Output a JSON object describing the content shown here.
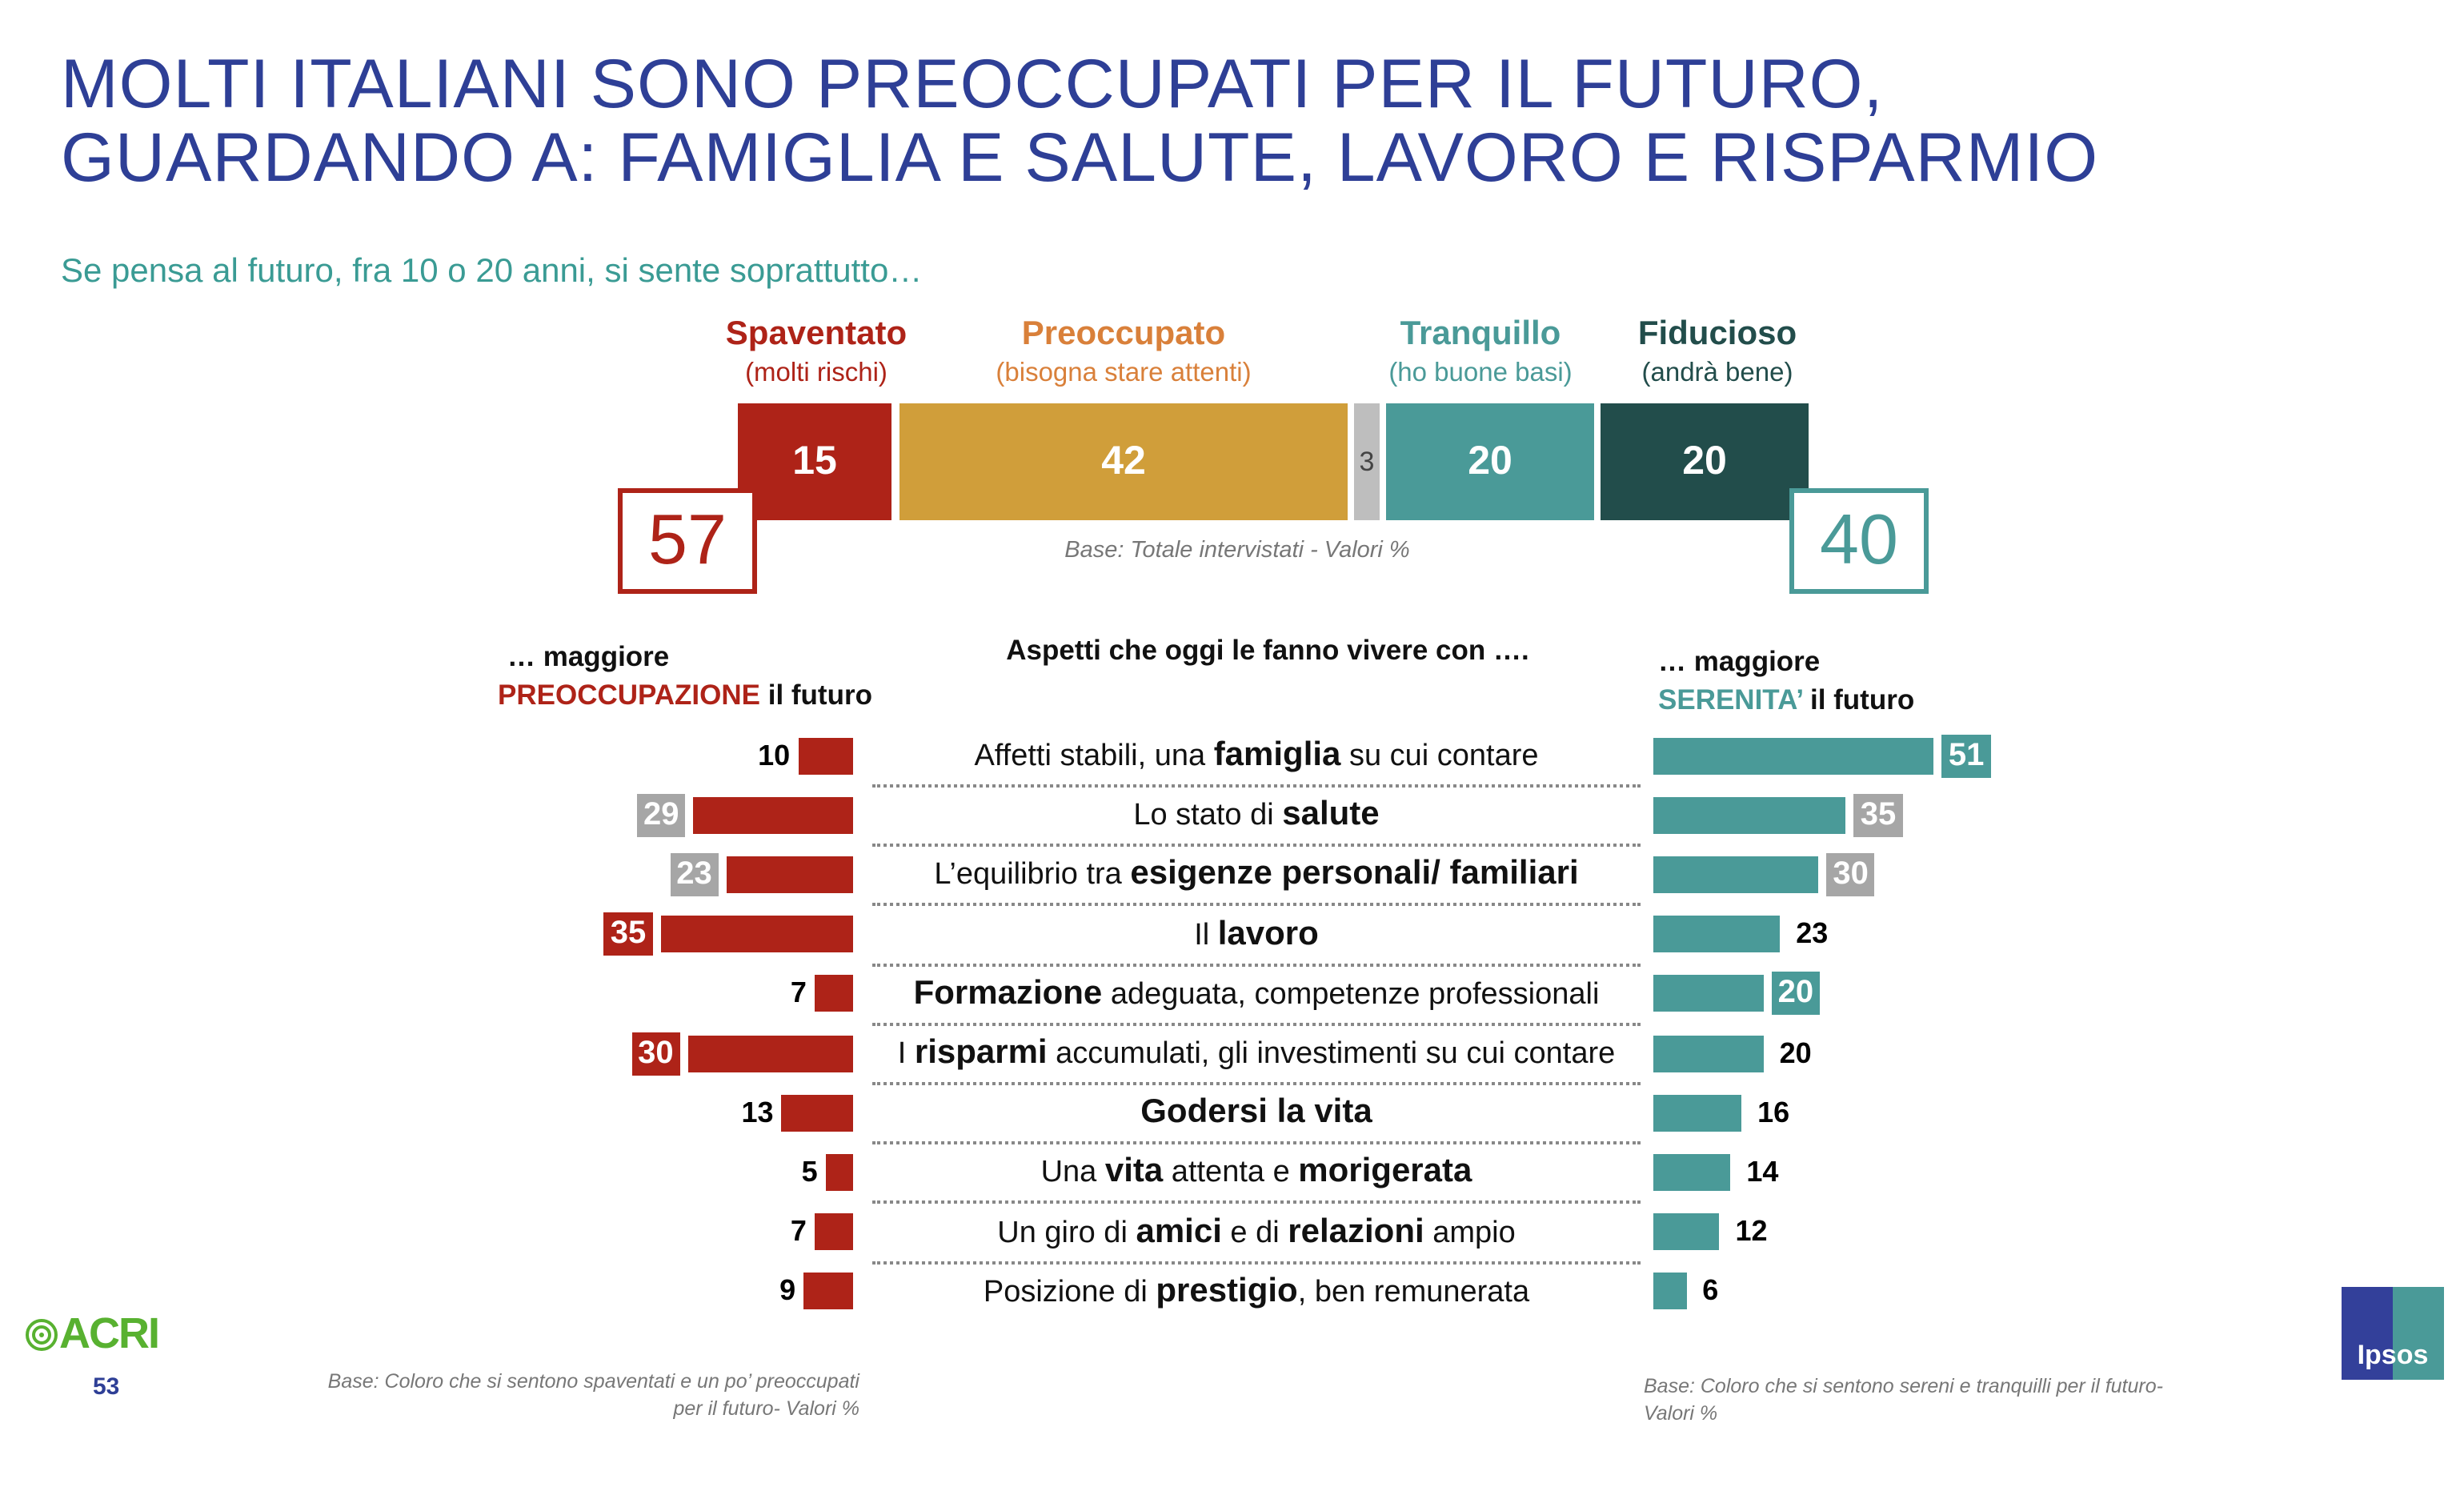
{
  "title_lines": [
    "MOLTI ITALIANI SONO PREOCCUPATI PER IL FUTURO,",
    "GUARDANDO A: FAMIGLIA E SALUTE, LAVORO E RISPARMIO"
  ],
  "subtitle": "Se pensa al futuro, fra 10 o 20 anni, si sente soprattutto…",
  "colors": {
    "title": "#2E3F96",
    "red": "#AE2318",
    "gold": "#D09E3A",
    "gray": "#BEBEBE",
    "teal": "#4A9A98",
    "dark_teal": "#224D4B",
    "orange_text": "#D9803A",
    "label_gray": "#A6A6A6"
  },
  "chart_data": [
    {
      "type": "bar",
      "orientation": "horizontal-stacked",
      "categories": [
        "Spaventato",
        "Preoccupato",
        "",
        "Tranquillo",
        "Fiducioso"
      ],
      "category_notes": [
        "(molti rischi)",
        "(bisogna stare attenti)",
        "",
        "(ho buone basi)",
        "(andrà bene)"
      ],
      "values": [
        15,
        42,
        3,
        20,
        20
      ],
      "totals": {
        "negative": "57",
        "positive": "40"
      },
      "note": "Base: Totale intervistati  - Valori %"
    },
    {
      "type": "bar",
      "orientation": "horizontal-butterfly",
      "center_header": "Aspetti che oggi le fanno vivere con ….",
      "left_header": {
        "line1": "… maggiore",
        "highlight": "PREOCCUPAZIONE",
        "rest": " il futuro"
      },
      "right_header": {
        "line1": "… maggiore",
        "highlight": "SERENITA’",
        "rest": " il futuro"
      },
      "categories": [
        [
          {
            "t": "Affetti stabili, una ",
            "b": false
          },
          {
            "t": "famiglia",
            "b": true
          },
          {
            "t": " su cui contare",
            "b": false
          }
        ],
        [
          {
            "t": "Lo stato di ",
            "b": false
          },
          {
            "t": "salute",
            "b": true
          }
        ],
        [
          {
            "t": "L’equilibrio tra ",
            "b": false
          },
          {
            "t": "esigenze personali/ familiari",
            "b": true
          }
        ],
        [
          {
            "t": "Il ",
            "b": false
          },
          {
            "t": "lavoro",
            "b": true
          }
        ],
        [
          {
            "t": "Formazione",
            "b": true
          },
          {
            "t": " adeguata, competenze professionali",
            "b": false
          }
        ],
        [
          {
            "t": "I ",
            "b": false
          },
          {
            "t": "risparmi",
            "b": true
          },
          {
            "t": " accumulati, gli investimenti su cui contare",
            "b": false
          }
        ],
        [
          {
            "t": "Godersi la vita",
            "b": true
          }
        ],
        [
          {
            "t": "Una ",
            "b": false
          },
          {
            "t": "vita",
            "b": true
          },
          {
            "t": " attenta e ",
            "b": false
          },
          {
            "t": "morigerata",
            "b": true
          }
        ],
        [
          {
            "t": "Un giro di ",
            "b": false
          },
          {
            "t": "amici",
            "b": true
          },
          {
            "t": " e di ",
            "b": false
          },
          {
            "t": "relazioni",
            "b": true
          },
          {
            "t": " ampio",
            "b": false
          }
        ],
        [
          {
            "t": "Posizione di ",
            "b": false
          },
          {
            "t": "prestigio",
            "b": true
          },
          {
            "t": ", ben remunerata",
            "b": false
          }
        ]
      ],
      "series": [
        {
          "name": "PREOCCUPAZIONE",
          "values": [
            10,
            29,
            23,
            35,
            7,
            30,
            13,
            5,
            7,
            9
          ],
          "label_highlight": [
            null,
            "gray",
            "gray",
            "red",
            null,
            "red",
            null,
            null,
            null,
            null
          ]
        },
        {
          "name": "SERENITA’",
          "values": [
            51,
            35,
            30,
            23,
            20,
            20,
            16,
            14,
            12,
            6
          ],
          "label_highlight": [
            "teal",
            "gray",
            "gray",
            null,
            "teal",
            null,
            null,
            null,
            null,
            null
          ]
        }
      ],
      "notes": {
        "left": [
          "Base: Coloro che si sentono spaventati e un po’ preoccupati",
          "per il futuro- Valori %"
        ],
        "right": [
          "Base: Coloro che si sentono sereni e tranquilli per il futuro-",
          "Valori %"
        ]
      }
    }
  ],
  "footer": {
    "page_number": "53",
    "logo_left": "ACRI",
    "logo_right": "Ipsos"
  }
}
